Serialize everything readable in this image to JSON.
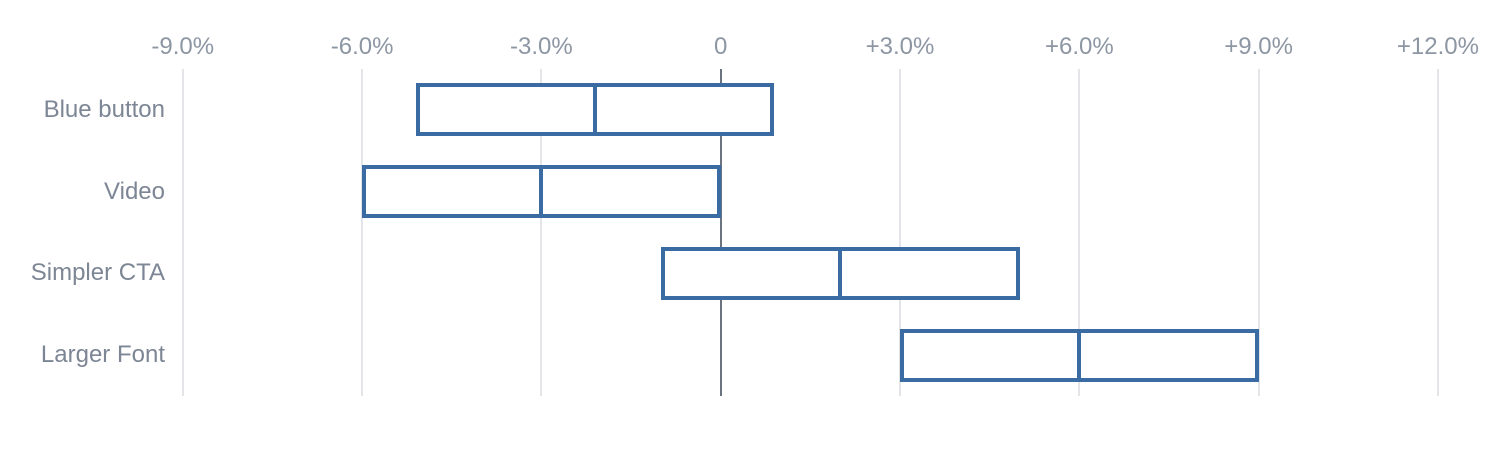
{
  "chart_data": {
    "type": "bar",
    "subtype": "horizontal-interval-boxes-with-midpoint",
    "orientation": "horizontal",
    "categories": [
      "Blue button",
      "Video",
      "Simpler CTA",
      "Larger Font"
    ],
    "series": [
      {
        "name": "interval_low",
        "values": [
          -5.1,
          -6.0,
          -1.0,
          3.0
        ]
      },
      {
        "name": "interval_mid",
        "values": [
          -2.1,
          -3.0,
          2.0,
          6.0
        ]
      },
      {
        "name": "interval_high",
        "values": [
          0.9,
          0.0,
          5.0,
          9.0
        ]
      }
    ],
    "x_axis": {
      "unit": "%",
      "position": "top",
      "xlim": [
        -9,
        12
      ],
      "ticks": [
        {
          "value": -9,
          "label": "-9.0%"
        },
        {
          "value": -6,
          "label": "-6.0%"
        },
        {
          "value": -3,
          "label": "-3.0%"
        },
        {
          "value": 0,
          "label": "0"
        },
        {
          "value": 3,
          "label": "+3.0%"
        },
        {
          "value": 6,
          "label": "+6.0%"
        },
        {
          "value": 9,
          "label": "+9.0%"
        },
        {
          "value": 12,
          "label": "+12.0%"
        }
      ]
    },
    "grid": true,
    "legend": false,
    "colors": {
      "background": "#ffffff",
      "box_border": "#3a6ba3",
      "box_fill": "#ffffff",
      "gridline": "#e4e5e8",
      "zero_line": "#6b7380",
      "tick_label": "#8d96a3",
      "category_label": "#7d8695"
    }
  }
}
